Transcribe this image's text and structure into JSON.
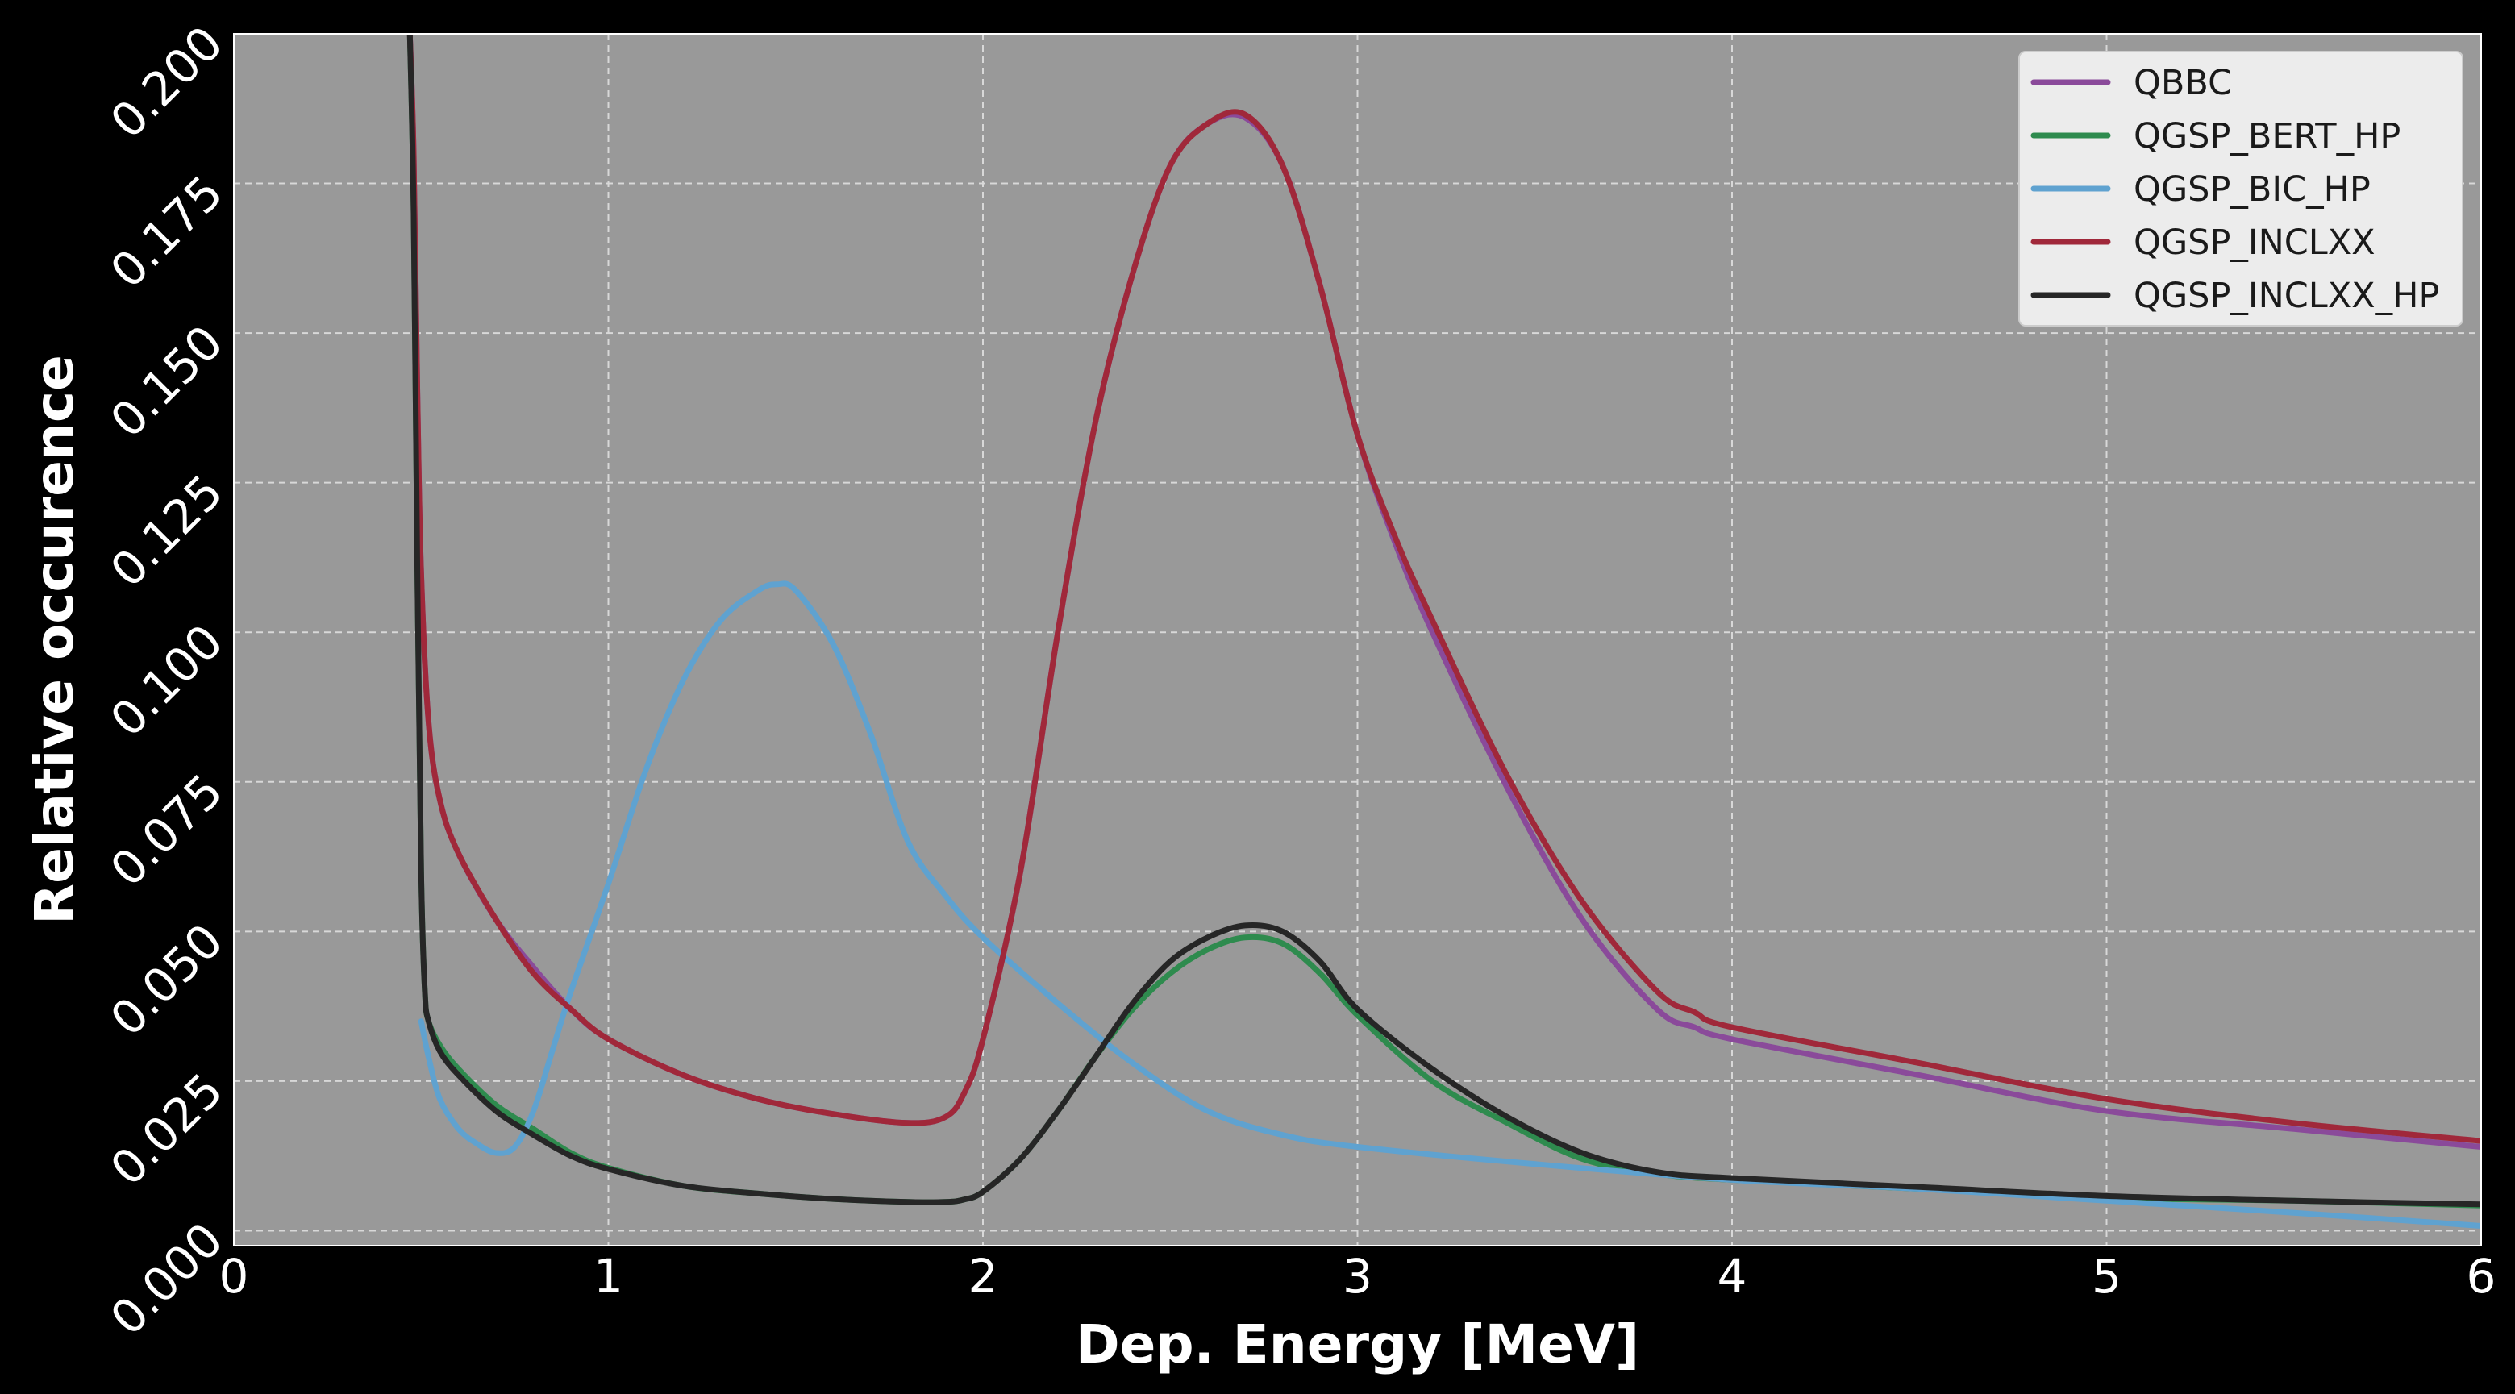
{
  "chart_data": {
    "type": "line",
    "title": "",
    "xlabel": "Dep. Energy [MeV]",
    "ylabel": "Relative occurence",
    "xlim": [
      0,
      6
    ],
    "ylim": [
      0,
      0.2
    ],
    "xticks": [
      0,
      1,
      2,
      3,
      4,
      5,
      6
    ],
    "yticks": [
      0,
      0.025,
      0.05,
      0.075,
      0.1,
      0.125,
      0.15,
      0.175,
      0.2
    ],
    "xtick_labels": [
      "0",
      "1",
      "2",
      "3",
      "4",
      "5",
      "6"
    ],
    "ytick_labels": [
      "0.000",
      "0.025",
      "0.050",
      "0.075",
      "0.100",
      "0.125",
      "0.150",
      "0.175",
      "0.200"
    ],
    "grid": true,
    "legend_position": "top-right",
    "plot_background": "#999999",
    "figure_background": "#000000",
    "series": [
      {
        "name": "QBBC",
        "color": "#8a4a9a",
        "x": [
          0.47,
          0.48,
          0.49,
          0.5,
          0.52,
          0.55,
          0.6,
          0.7,
          0.8,
          0.9,
          1.0,
          1.2,
          1.4,
          1.6,
          1.8,
          1.9,
          1.95,
          2.0,
          2.1,
          2.2,
          2.3,
          2.4,
          2.5,
          2.6,
          2.7,
          2.8,
          2.9,
          3.0,
          3.1,
          3.2,
          3.4,
          3.6,
          3.8,
          3.9,
          4.0,
          4.5,
          5.0,
          5.5,
          6.0
        ],
        "y": [
          0.2,
          0.18,
          0.14,
          0.11,
          0.085,
          0.072,
          0.063,
          0.052,
          0.044,
          0.037,
          0.032,
          0.026,
          0.022,
          0.0195,
          0.018,
          0.019,
          0.023,
          0.032,
          0.06,
          0.1,
          0.135,
          0.16,
          0.178,
          0.185,
          0.186,
          0.178,
          0.158,
          0.133,
          0.115,
          0.1,
          0.074,
          0.052,
          0.037,
          0.034,
          0.032,
          0.026,
          0.02,
          0.017,
          0.014
        ]
      },
      {
        "name": "QGSP_BERT_HP",
        "color": "#2e8b4e",
        "x": [
          0.47,
          0.48,
          0.49,
          0.5,
          0.51,
          0.52,
          0.55,
          0.6,
          0.7,
          0.8,
          0.9,
          1.0,
          1.2,
          1.4,
          1.6,
          1.8,
          1.9,
          1.95,
          2.0,
          2.1,
          2.2,
          2.3,
          2.4,
          2.5,
          2.6,
          2.7,
          2.8,
          2.9,
          3.0,
          3.2,
          3.4,
          3.6,
          3.8,
          4.0,
          4.5,
          5.0,
          5.5,
          6.0
        ],
        "y": [
          0.2,
          0.17,
          0.11,
          0.06,
          0.04,
          0.035,
          0.031,
          0.027,
          0.021,
          0.017,
          0.013,
          0.0105,
          0.0075,
          0.0062,
          0.0053,
          0.0048,
          0.0048,
          0.0052,
          0.0065,
          0.012,
          0.02,
          0.029,
          0.037,
          0.043,
          0.047,
          0.049,
          0.048,
          0.043,
          0.036,
          0.025,
          0.018,
          0.012,
          0.0095,
          0.0085,
          0.007,
          0.0055,
          0.005,
          0.0042
        ]
      },
      {
        "name": "QGSP_BIC_HP",
        "color": "#5fa2d0",
        "x": [
          0.5,
          0.52,
          0.55,
          0.6,
          0.65,
          0.7,
          0.75,
          0.8,
          0.85,
          0.9,
          1.0,
          1.1,
          1.2,
          1.3,
          1.4,
          1.45,
          1.5,
          1.6,
          1.7,
          1.8,
          1.9,
          2.0,
          2.2,
          2.4,
          2.6,
          2.8,
          3.0,
          3.5,
          4.0,
          4.5,
          5.0,
          5.5,
          6.0
        ],
        "y": [
          0.035,
          0.029,
          0.022,
          0.017,
          0.0145,
          0.013,
          0.014,
          0.02,
          0.03,
          0.04,
          0.058,
          0.077,
          0.092,
          0.102,
          0.107,
          0.108,
          0.107,
          0.098,
          0.083,
          0.065,
          0.056,
          0.049,
          0.038,
          0.028,
          0.02,
          0.016,
          0.014,
          0.011,
          0.0085,
          0.007,
          0.005,
          0.003,
          0.0008
        ]
      },
      {
        "name": "QGSP_INCLXX",
        "color": "#a0283a",
        "x": [
          0.47,
          0.48,
          0.49,
          0.5,
          0.52,
          0.55,
          0.6,
          0.7,
          0.8,
          0.9,
          1.0,
          1.2,
          1.4,
          1.6,
          1.8,
          1.9,
          1.95,
          2.0,
          2.1,
          2.2,
          2.3,
          2.4,
          2.5,
          2.6,
          2.7,
          2.8,
          2.9,
          3.0,
          3.1,
          3.2,
          3.4,
          3.6,
          3.8,
          3.9,
          4.0,
          4.5,
          5.0,
          5.5,
          6.0
        ],
        "y": [
          0.2,
          0.18,
          0.14,
          0.11,
          0.085,
          0.072,
          0.063,
          0.052,
          0.043,
          0.037,
          0.032,
          0.026,
          0.022,
          0.0195,
          0.018,
          0.019,
          0.023,
          0.032,
          0.06,
          0.1,
          0.135,
          0.16,
          0.178,
          0.185,
          0.1865,
          0.178,
          0.158,
          0.133,
          0.116,
          0.102,
          0.076,
          0.055,
          0.04,
          0.0365,
          0.034,
          0.028,
          0.022,
          0.018,
          0.015
        ]
      },
      {
        "name": "QGSP_INCLXX_HP",
        "color": "#262626",
        "x": [
          0.47,
          0.48,
          0.49,
          0.5,
          0.51,
          0.52,
          0.55,
          0.6,
          0.7,
          0.8,
          0.9,
          1.0,
          1.2,
          1.4,
          1.6,
          1.8,
          1.9,
          1.95,
          2.0,
          2.1,
          2.2,
          2.3,
          2.4,
          2.5,
          2.6,
          2.7,
          2.8,
          2.9,
          3.0,
          3.2,
          3.4,
          3.6,
          3.8,
          4.0,
          4.5,
          5.0,
          5.5,
          6.0
        ],
        "y": [
          0.2,
          0.17,
          0.11,
          0.06,
          0.04,
          0.035,
          0.03,
          0.026,
          0.02,
          0.016,
          0.0125,
          0.0103,
          0.0075,
          0.0062,
          0.0053,
          0.0048,
          0.0048,
          0.0052,
          0.0065,
          0.012,
          0.02,
          0.029,
          0.038,
          0.045,
          0.049,
          0.051,
          0.05,
          0.045,
          0.037,
          0.027,
          0.019,
          0.013,
          0.0098,
          0.0088,
          0.0073,
          0.0058,
          0.005,
          0.0044
        ]
      }
    ]
  }
}
